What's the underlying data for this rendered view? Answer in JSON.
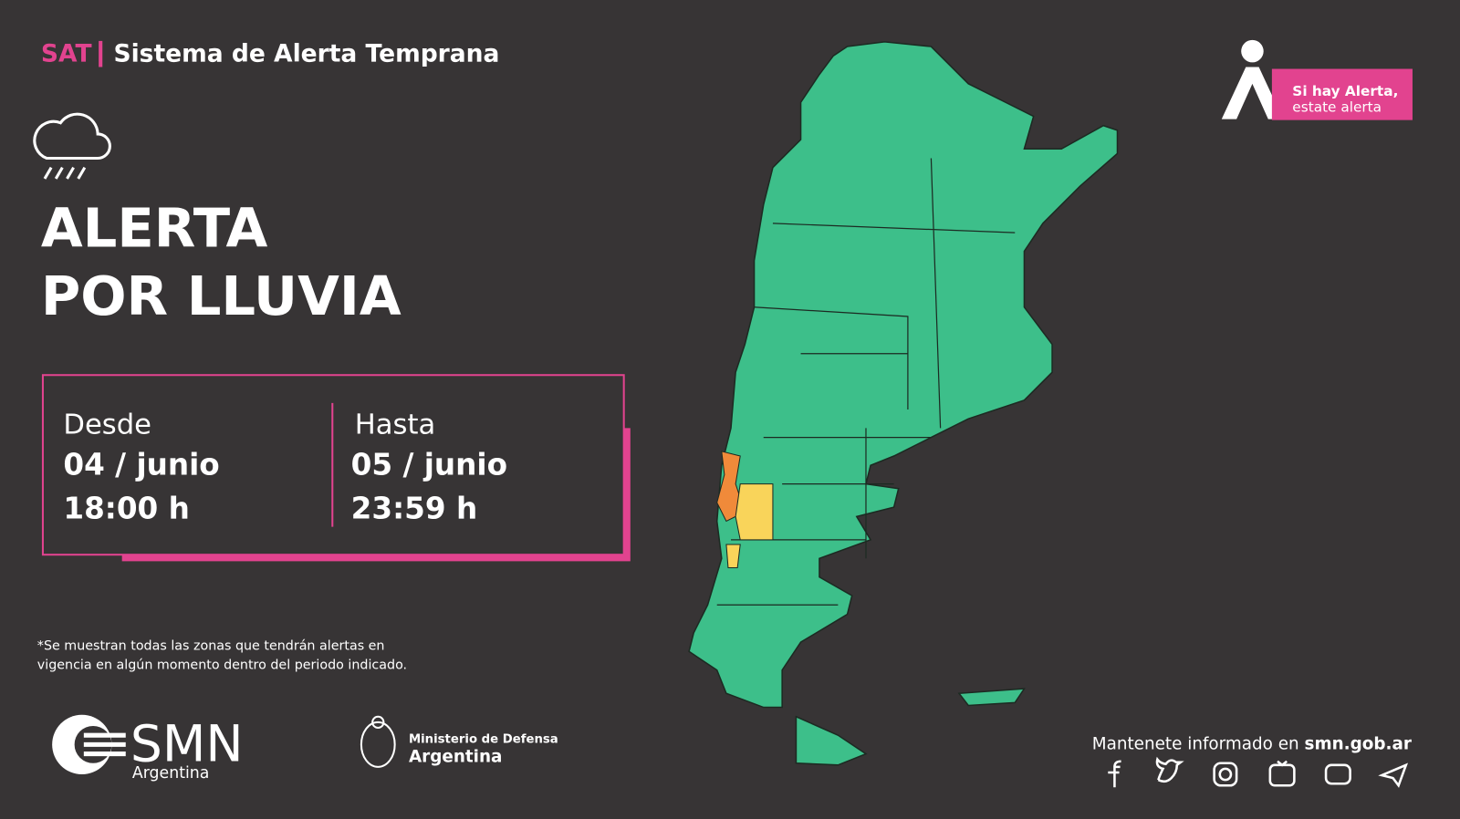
{
  "header": {
    "sat": "SAT",
    "title": "Sistema de Alerta Temprana"
  },
  "alert": {
    "line1": "ALERTA",
    "line2": "POR LLUVIA"
  },
  "period": {
    "from_label": "Desde",
    "from_date": "04 / junio",
    "from_time": "18:00 h",
    "to_label": "Hasta",
    "to_date": "05 / junio",
    "to_time": "23:59 h"
  },
  "footnote": {
    "line1": "*Se muestran todas las zonas que tendrán alertas en",
    "line2": "vigencia en algún momento dentro del periodo indicado."
  },
  "logos": {
    "smn": "SMN",
    "smn_sub": "Argentina",
    "ministry": "Ministerio de Defensa",
    "ministry_sub": "Argentina"
  },
  "slogan": {
    "line1": "Si hay Alerta,",
    "line2": "estate alerta"
  },
  "footer": {
    "prefix": "Mantenete informado en",
    "link": "smn.gob.ar"
  }
}
